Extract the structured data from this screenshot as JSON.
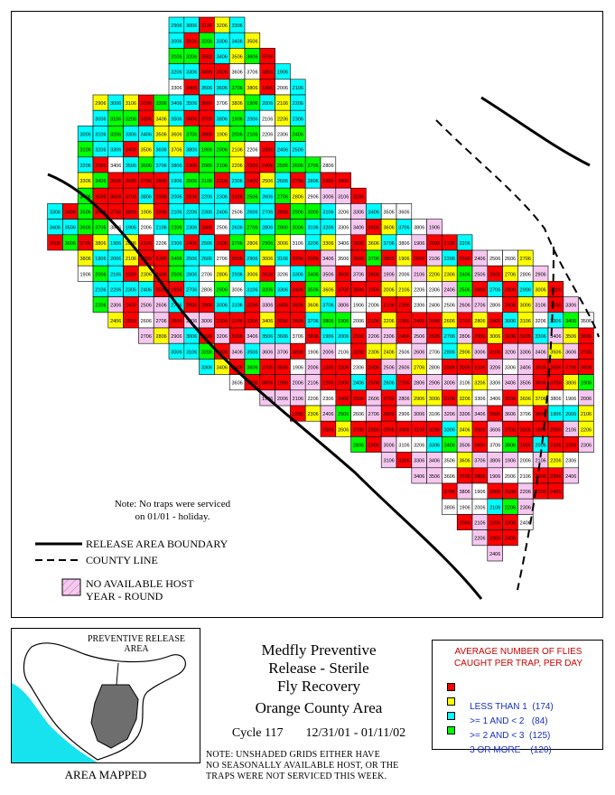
{
  "map": {
    "note_line1": "Note: No traps were serviced",
    "note_line2": "on 01/01 - holiday.",
    "legend": {
      "release_boundary": "RELEASE AREA BOUNDARY",
      "county_line": "COUNTY LINE",
      "no_host_line1": "NO AVAILABLE HOST",
      "no_host_line2": "YEAR - ROUND"
    }
  },
  "inset": {
    "label_line1": "PREVENTIVE RELEASE",
    "label_line2": "AREA",
    "caption": "AREA MAPPED",
    "colors": {
      "ocean": "#17e3ef",
      "land": "#ffffff",
      "area": "#6e6e6e"
    }
  },
  "title": {
    "line1": "Medfly Preventive",
    "line2": "Release - Sterile",
    "line3": "Fly Recovery",
    "line4": "Orange County Area",
    "cycle": "Cycle 117",
    "dates": "12/31/01 - 01/11/02"
  },
  "bottom_note": {
    "line1": "NOTE: UNSHADED GRIDS EITHER HAVE",
    "line2": "NO SEASONALLY AVAILABLE HOST, OR THE",
    "line3": "TRAPS WERE NOT SERVICED THIS WEEK."
  },
  "key": {
    "title_line1": "AVERAGE NUMBER OF FLIES",
    "title_line2": "CAUGHT PER TRAP, PER DAY",
    "items": [
      {
        "label": "LESS THAN 1",
        "count": "(174)",
        "color": "#ff0000"
      },
      {
        "label": ">= 1 AND < 2",
        "count": "(84)",
        "color": "#ffff00"
      },
      {
        "label": ">= 2 AND < 3",
        "count": "(125)",
        "color": "#00ffff"
      },
      {
        "label": "3 OR MORE",
        "count": "(120)",
        "color": "#00ff00"
      }
    ]
  },
  "grid": {
    "colors": {
      "lt1": "#ff0000",
      "1to2": "#ffff00",
      "2to3": "#00ffff",
      "ge3": "#00ff00",
      "nohost": "#f6c8f0",
      "empty": "#ffffff"
    },
    "sample_cell_labels": [
      "1906",
      "2006",
      "2106",
      "2206",
      "2306",
      "2406",
      "2506",
      "2606",
      "2706",
      "2806",
      "2906",
      "3006",
      "3106",
      "3206",
      "3306",
      "3406",
      "3506",
      "3606",
      "3706",
      "3806"
    ]
  }
}
